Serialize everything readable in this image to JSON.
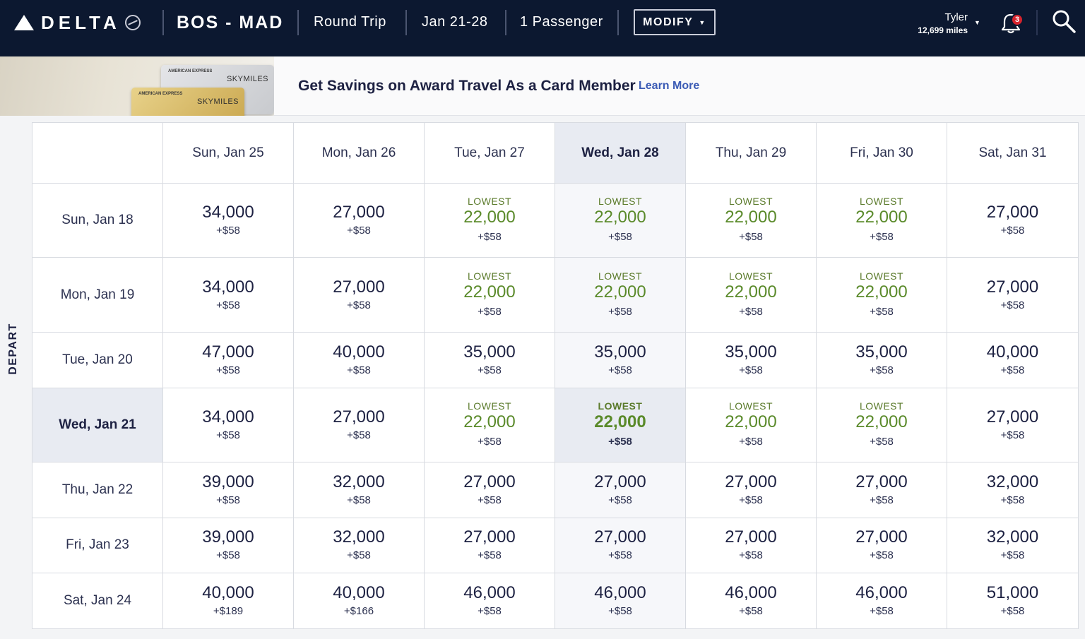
{
  "header": {
    "logo_text": "DELTA",
    "route": "BOS - MAD",
    "trip_type": "Round Trip",
    "dates": "Jan 21-28",
    "passengers": "1 Passenger",
    "modify_label": "MODIFY",
    "user_name": "Tyler",
    "user_miles": "12,699 miles",
    "notification_count": "3"
  },
  "promo": {
    "text": "Get Savings on Award Travel As a Card Member",
    "link": "Learn More",
    "card_issuer": "AMERICAN EXPRESS",
    "card_brand": "SKYMILES"
  },
  "axis_label": "DEPART",
  "return_dates": [
    "Sun, Jan 25",
    "Mon, Jan 26",
    "Tue, Jan 27",
    "Wed, Jan 28",
    "Thu, Jan 29",
    "Fri, Jan 30",
    "Sat, Jan 31"
  ],
  "selected_return_index": 3,
  "selected_depart_index": 3,
  "lowest_label": "LOWEST",
  "rows": [
    {
      "depart": "Sun, Jan 18",
      "cells": [
        {
          "miles": "34,000",
          "fee": "+$58",
          "lowest": false
        },
        {
          "miles": "27,000",
          "fee": "+$58",
          "lowest": false
        },
        {
          "miles": "22,000",
          "fee": "+$58",
          "lowest": true
        },
        {
          "miles": "22,000",
          "fee": "+$58",
          "lowest": true
        },
        {
          "miles": "22,000",
          "fee": "+$58",
          "lowest": true
        },
        {
          "miles": "22,000",
          "fee": "+$58",
          "lowest": true
        },
        {
          "miles": "27,000",
          "fee": "+$58",
          "lowest": false
        }
      ]
    },
    {
      "depart": "Mon, Jan 19",
      "cells": [
        {
          "miles": "34,000",
          "fee": "+$58",
          "lowest": false
        },
        {
          "miles": "27,000",
          "fee": "+$58",
          "lowest": false
        },
        {
          "miles": "22,000",
          "fee": "+$58",
          "lowest": true
        },
        {
          "miles": "22,000",
          "fee": "+$58",
          "lowest": true
        },
        {
          "miles": "22,000",
          "fee": "+$58",
          "lowest": true
        },
        {
          "miles": "22,000",
          "fee": "+$58",
          "lowest": true
        },
        {
          "miles": "27,000",
          "fee": "+$58",
          "lowest": false
        }
      ]
    },
    {
      "depart": "Tue, Jan 20",
      "cells": [
        {
          "miles": "47,000",
          "fee": "+$58",
          "lowest": false
        },
        {
          "miles": "40,000",
          "fee": "+$58",
          "lowest": false
        },
        {
          "miles": "35,000",
          "fee": "+$58",
          "lowest": false
        },
        {
          "miles": "35,000",
          "fee": "+$58",
          "lowest": false
        },
        {
          "miles": "35,000",
          "fee": "+$58",
          "lowest": false
        },
        {
          "miles": "35,000",
          "fee": "+$58",
          "lowest": false
        },
        {
          "miles": "40,000",
          "fee": "+$58",
          "lowest": false
        }
      ]
    },
    {
      "depart": "Wed, Jan 21",
      "cells": [
        {
          "miles": "34,000",
          "fee": "+$58",
          "lowest": false
        },
        {
          "miles": "27,000",
          "fee": "+$58",
          "lowest": false
        },
        {
          "miles": "22,000",
          "fee": "+$58",
          "lowest": true
        },
        {
          "miles": "22,000",
          "fee": "+$58",
          "lowest": true
        },
        {
          "miles": "22,000",
          "fee": "+$58",
          "lowest": true
        },
        {
          "miles": "22,000",
          "fee": "+$58",
          "lowest": true
        },
        {
          "miles": "27,000",
          "fee": "+$58",
          "lowest": false
        }
      ]
    },
    {
      "depart": "Thu, Jan 22",
      "cells": [
        {
          "miles": "39,000",
          "fee": "+$58",
          "lowest": false
        },
        {
          "miles": "32,000",
          "fee": "+$58",
          "lowest": false
        },
        {
          "miles": "27,000",
          "fee": "+$58",
          "lowest": false
        },
        {
          "miles": "27,000",
          "fee": "+$58",
          "lowest": false
        },
        {
          "miles": "27,000",
          "fee": "+$58",
          "lowest": false
        },
        {
          "miles": "27,000",
          "fee": "+$58",
          "lowest": false
        },
        {
          "miles": "32,000",
          "fee": "+$58",
          "lowest": false
        }
      ]
    },
    {
      "depart": "Fri, Jan 23",
      "cells": [
        {
          "miles": "39,000",
          "fee": "+$58",
          "lowest": false
        },
        {
          "miles": "32,000",
          "fee": "+$58",
          "lowest": false
        },
        {
          "miles": "27,000",
          "fee": "+$58",
          "lowest": false
        },
        {
          "miles": "27,000",
          "fee": "+$58",
          "lowest": false
        },
        {
          "miles": "27,000",
          "fee": "+$58",
          "lowest": false
        },
        {
          "miles": "27,000",
          "fee": "+$58",
          "lowest": false
        },
        {
          "miles": "32,000",
          "fee": "+$58",
          "lowest": false
        }
      ]
    },
    {
      "depart": "Sat, Jan 24",
      "cells": [
        {
          "miles": "40,000",
          "fee": "+$189",
          "lowest": false
        },
        {
          "miles": "40,000",
          "fee": "+$166",
          "lowest": false
        },
        {
          "miles": "46,000",
          "fee": "+$58",
          "lowest": false
        },
        {
          "miles": "46,000",
          "fee": "+$58",
          "lowest": false
        },
        {
          "miles": "46,000",
          "fee": "+$58",
          "lowest": false
        },
        {
          "miles": "46,000",
          "fee": "+$58",
          "lowest": false
        },
        {
          "miles": "51,000",
          "fee": "+$58",
          "lowest": false
        }
      ]
    }
  ]
}
